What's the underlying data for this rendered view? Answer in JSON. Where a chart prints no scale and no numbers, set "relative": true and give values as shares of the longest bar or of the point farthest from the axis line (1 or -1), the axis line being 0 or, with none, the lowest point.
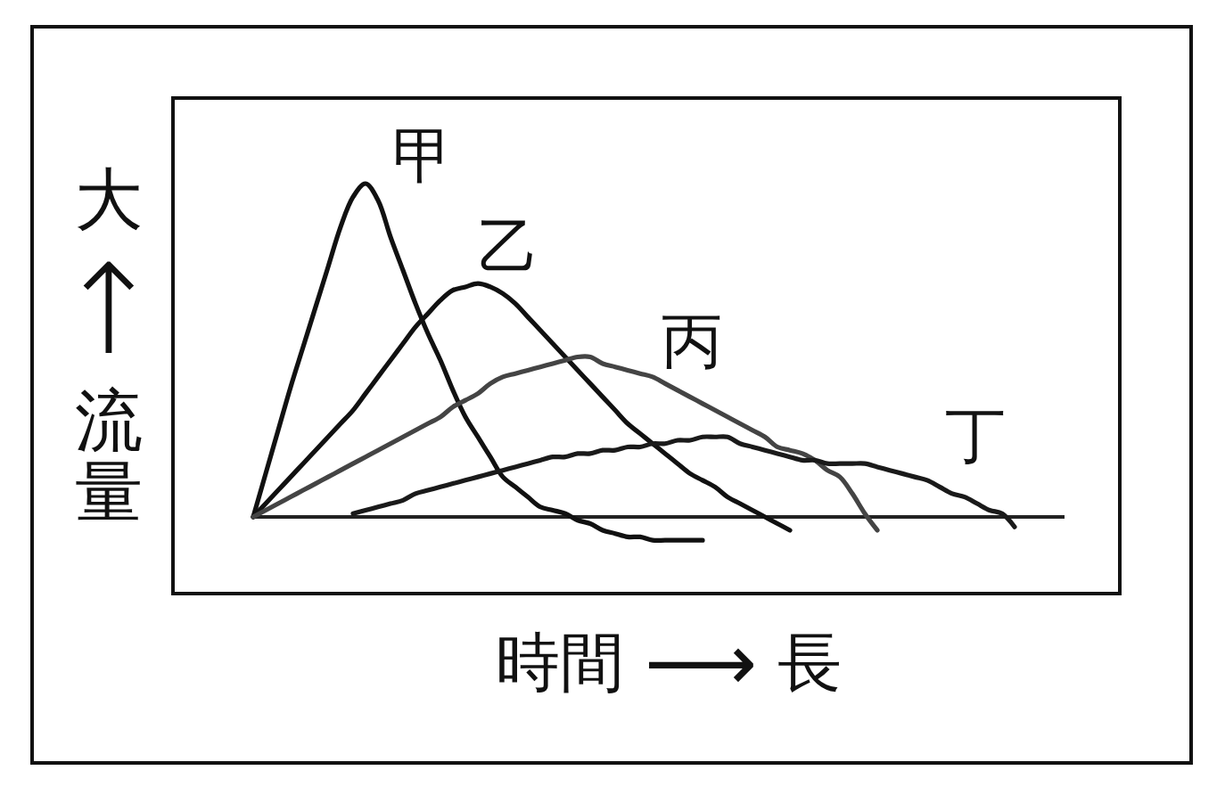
{
  "chart_data": {
    "type": "line",
    "relative": true,
    "xlabel": "時間 ⟶ 長",
    "ylabel": "大↑流量",
    "categories": [
      null,
      null,
      null,
      null,
      null,
      null,
      null,
      null,
      null,
      null,
      null,
      null,
      null,
      null,
      null,
      null,
      null,
      null,
      null,
      null,
      null,
      null,
      null,
      null,
      null,
      null,
      null,
      null,
      null,
      null,
      null,
      null,
      null,
      null,
      null,
      null,
      null,
      null,
      null,
      null,
      null,
      null,
      null,
      null,
      null,
      null,
      null,
      null,
      null,
      null,
      null,
      null,
      null,
      null,
      null,
      null,
      null,
      null,
      null,
      null,
      null,
      null,
      null,
      null,
      null,
      null
    ],
    "series": [
      {
        "name": "甲",
        "color": "#111111",
        "values": [
          0,
          0.13,
          0.26,
          0.39,
          0.51,
          0.63,
          0.75,
          0.87,
          0.96,
          1,
          0.95,
          0.84,
          0.74,
          0.64,
          0.55,
          0.47,
          0.38,
          0.3,
          0.24,
          0.18,
          0.12,
          0.09,
          0.06,
          0.03,
          0.02,
          0.01,
          -0.01,
          -0.02,
          -0.04,
          -0.05,
          -0.06,
          -0.06,
          -0.07,
          -0.07,
          -0.07,
          -0.07,
          -0.07,
          null,
          null,
          null,
          null,
          null,
          null,
          null,
          null,
          null,
          null,
          null,
          null,
          null,
          null,
          null,
          null,
          null,
          null,
          null,
          null,
          null,
          null,
          null,
          null,
          null,
          null,
          null,
          null,
          null
        ]
      },
      {
        "name": "乙",
        "color": "#111111",
        "values": [
          0,
          0.04,
          0.08,
          0.12,
          0.16,
          0.2,
          0.24,
          0.28,
          0.32,
          0.37,
          0.42,
          0.47,
          0.52,
          0.57,
          0.61,
          0.65,
          0.68,
          0.69,
          0.7,
          0.69,
          0.67,
          0.64,
          0.6,
          0.56,
          0.52,
          0.48,
          0.44,
          0.4,
          0.36,
          0.32,
          0.28,
          0.25,
          0.22,
          0.19,
          0.16,
          0.13,
          0.11,
          0.09,
          0.06,
          0.04,
          0.02,
          0,
          -0.02,
          -0.04,
          null,
          null,
          null,
          null,
          null,
          null,
          null,
          null,
          null,
          null,
          null,
          null,
          null,
          null,
          null,
          null,
          null,
          null,
          null,
          null,
          null,
          null
        ]
      },
      {
        "name": "丙",
        "color": "#444444",
        "values": [
          0,
          0.02,
          0.04,
          0.06,
          0.08,
          0.1,
          0.12,
          0.14,
          0.16,
          0.18,
          0.2,
          0.22,
          0.24,
          0.26,
          0.28,
          0.3,
          0.33,
          0.35,
          0.37,
          0.4,
          0.42,
          0.43,
          0.44,
          0.45,
          0.46,
          0.47,
          0.48,
          0.48,
          0.46,
          0.45,
          0.44,
          0.43,
          0.42,
          0.4,
          0.38,
          0.36,
          0.34,
          0.32,
          0.3,
          0.28,
          0.26,
          0.24,
          0.21,
          0.2,
          0.19,
          0.17,
          0.14,
          0.12,
          0.07,
          0.01,
          -0.04,
          null,
          null,
          null,
          null,
          null,
          null,
          null,
          null,
          null,
          null,
          null,
          null,
          null,
          null,
          null
        ]
      },
      {
        "name": "丁",
        "color": "#1a1a1a",
        "values": [
          null,
          null,
          null,
          null,
          null,
          null,
          null,
          null,
          0.01,
          0.02,
          0.03,
          0.04,
          0.05,
          0.07,
          0.08,
          0.09,
          0.1,
          0.11,
          0.12,
          0.13,
          0.14,
          0.15,
          0.16,
          0.17,
          0.18,
          0.18,
          0.19,
          0.19,
          0.2,
          0.2,
          0.21,
          0.21,
          0.22,
          0.22,
          0.23,
          0.23,
          0.24,
          0.24,
          0.24,
          0.22,
          0.21,
          0.2,
          0.19,
          0.18,
          0.17,
          0.17,
          0.16,
          0.16,
          0.16,
          0.16,
          0.15,
          0.14,
          0.13,
          0.12,
          0.11,
          0.09,
          0.07,
          0.06,
          0.04,
          0.02,
          0.01,
          -0.03,
          null,
          null,
          null,
          null
        ]
      }
    ]
  }
}
